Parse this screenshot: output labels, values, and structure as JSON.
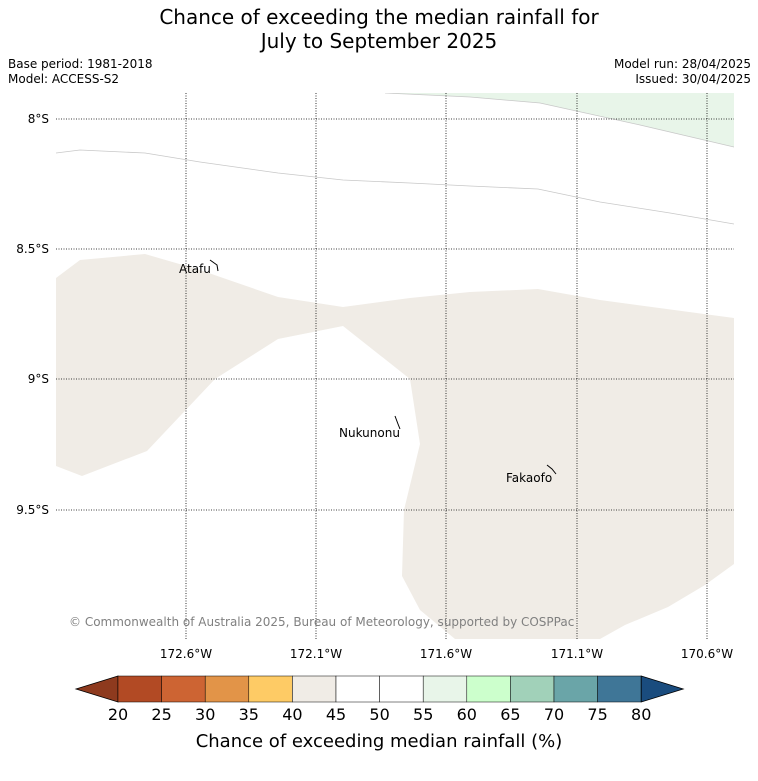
{
  "title": {
    "line1": "Chance of exceeding the median rainfall for",
    "line2": "July to September 2025"
  },
  "meta": {
    "base_period": "Base period: 1981-2018",
    "model": "Model: ACCESS-S2",
    "model_run": "Model run: 28/04/2025",
    "issued": "Issued: 30/04/2025"
  },
  "map": {
    "lat_labels": [
      "8°S",
      "8.5°S",
      "9°S",
      "9.5°S"
    ],
    "lon_labels": [
      "172.6°W",
      "172.1°W",
      "171.6°W",
      "171.1°W",
      "170.6°W"
    ],
    "places": [
      "Atafu",
      "Nukunonu",
      "Fakaofo"
    ],
    "copyright": "© Commonwealth of Australia 2025, Bureau of Meteorology, supported by COSPPac",
    "colors": {
      "band_40_45": "#f0ece6",
      "band_55_60": "#e8f5e9",
      "grid": "#000000"
    }
  },
  "colorbar": {
    "ticks": [
      "20",
      "25",
      "30",
      "35",
      "40",
      "45",
      "50",
      "55",
      "60",
      "65",
      "70",
      "75",
      "80"
    ],
    "colors": [
      "#8e3a1e",
      "#b24a24",
      "#cd6433",
      "#e29448",
      "#fecb65",
      "#f0ece6",
      "#ffffff",
      "#ffffff",
      "#e8f5e9",
      "#ccffcc",
      "#a1d1b9",
      "#6aa5a8",
      "#3f7697",
      "#1a4c7e"
    ],
    "label": "Chance of exceeding median rainfall (%)"
  }
}
